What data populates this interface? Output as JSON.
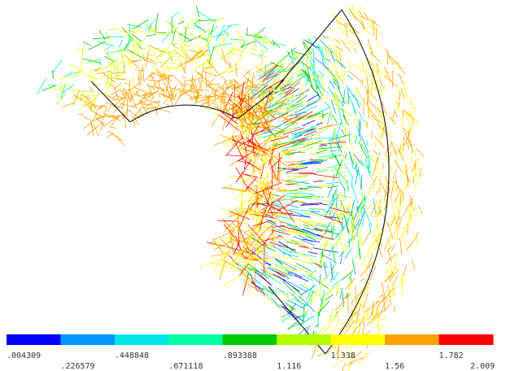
{
  "legend": {
    "colors": [
      "#0000ff",
      "#0096ff",
      "#00e6e6",
      "#00ffa0",
      "#00c800",
      "#b4ff00",
      "#ffff00",
      "#ffa000",
      "#ff0000"
    ],
    "labels": [
      ".004309",
      ".226579",
      ".448848",
      ".671118",
      ".893388",
      "1.116",
      "1.338",
      "1.56",
      "1.782",
      "2.009"
    ]
  }
}
